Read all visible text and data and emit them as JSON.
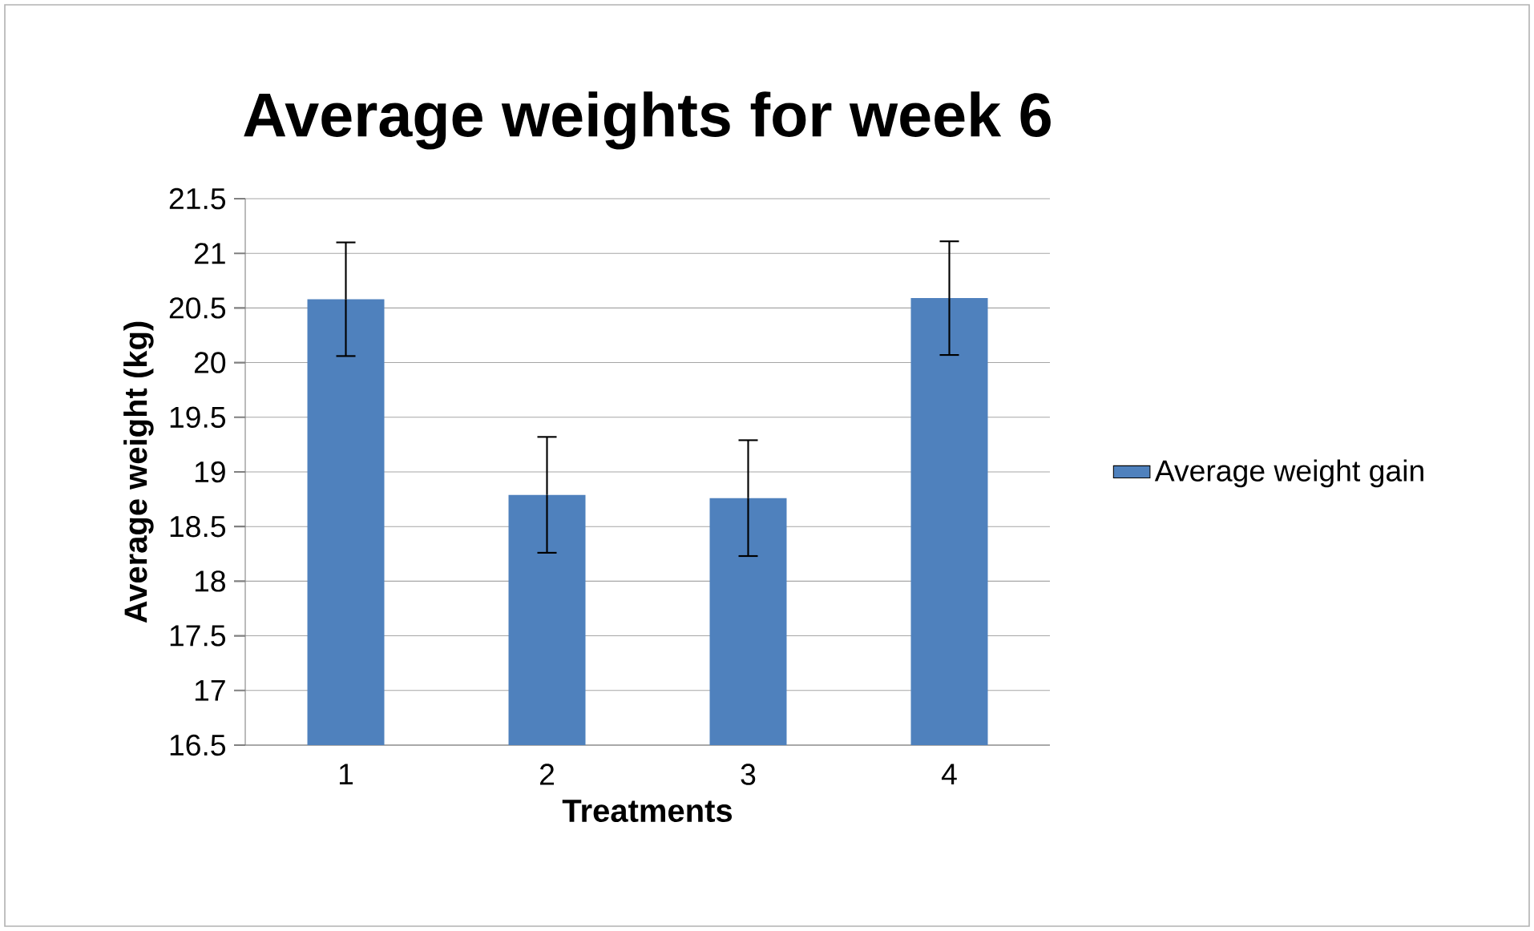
{
  "chart_data": {
    "type": "bar",
    "title": "Average weights  for week 6",
    "xlabel": "Treatments",
    "ylabel": "Average weight (kg)",
    "categories": [
      "1",
      "2",
      "3",
      "4"
    ],
    "series": [
      {
        "name": "Average weight gain",
        "color": "#4f81bd",
        "values": [
          20.58,
          18.79,
          18.76,
          20.59
        ],
        "errors": [
          0.52,
          0.53,
          0.53,
          0.52
        ]
      }
    ],
    "ylim": [
      16.5,
      21.5
    ],
    "yticks": [
      16.5,
      17,
      17.5,
      18,
      18.5,
      19,
      19.5,
      20,
      20.5,
      21,
      21.5
    ],
    "grid": "y",
    "legend": "right"
  }
}
